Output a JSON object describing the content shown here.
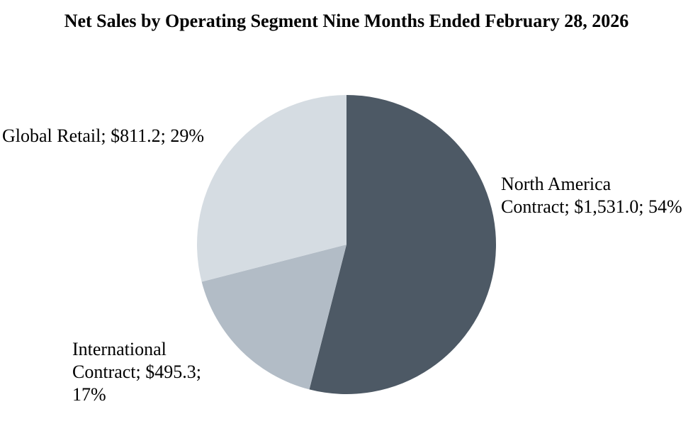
{
  "page": {
    "background_color": "#FFFFFF"
  },
  "title": "Net Sales by Operating Segment Nine Months Ended February 28, 2026",
  "chart_data": {
    "type": "pie",
    "title": "Net Sales by Operating Segment Nine Months Ended February 28, 2026",
    "start_angle_deg": 0,
    "direction": "clockwise",
    "legend_position": "none",
    "label_format": "name; $value; percent",
    "segments": [
      {
        "label": "North America Contract",
        "value": 1531.0,
        "display_value": "$1,531.0",
        "percent": 54,
        "color": "#4D5965",
        "label_lines": [
          "North America",
          "Contract; $1,531.0; 54%"
        ]
      },
      {
        "label": "International Contract",
        "value": 495.3,
        "display_value": "$495.3",
        "percent": 17,
        "color": "#B2BCC6",
        "label_lines": [
          "International",
          "Contract; $495.3;",
          "17%"
        ]
      },
      {
        "label": "Global Retail",
        "value": 811.2,
        "display_value": "$811.2",
        "percent": 29,
        "color": "#D5DCE2",
        "label_lines": [
          "Global Retail; $811.2; 29%"
        ]
      }
    ]
  }
}
